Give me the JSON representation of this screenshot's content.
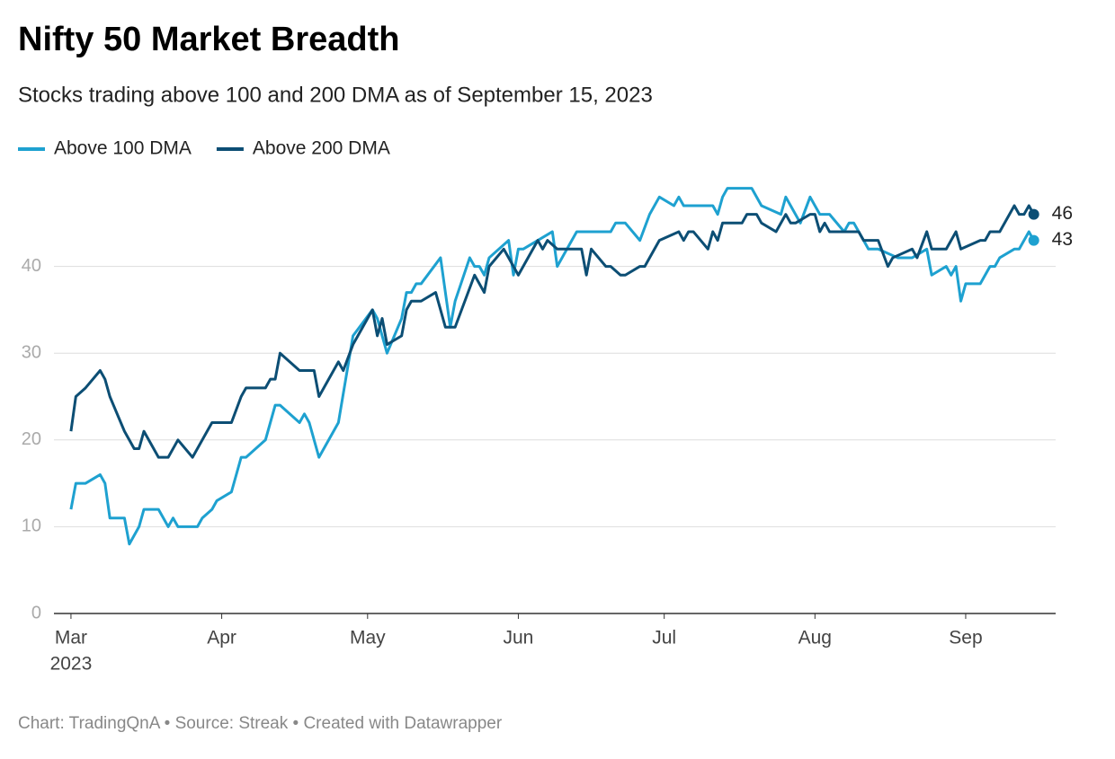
{
  "chart_data": {
    "type": "line",
    "title": "Nifty 50 Market Breadth",
    "subtitle": "Stocks trading above 100 and 200 DMA as of September 15, 2023",
    "footer": "Chart: TradingQnA • Source: Streak • Created with Datawrapper",
    "x_year": "2023",
    "series": [
      {
        "name": "Above 100 DMA",
        "color": "#1ea1d0",
        "x": [
          0,
          1,
          3,
          6,
          7,
          8,
          11,
          12,
          14,
          15,
          18,
          20,
          21,
          22,
          26,
          27,
          29,
          30,
          33,
          35,
          36,
          40,
          42,
          43,
          47,
          48,
          49,
          51,
          55,
          58,
          62,
          63,
          65,
          68,
          69,
          70,
          71,
          72,
          76,
          78,
          79,
          82,
          83,
          84,
          85,
          86,
          90,
          91,
          92,
          93,
          99,
          100,
          104,
          111,
          112,
          114,
          117,
          119,
          121,
          124,
          125,
          126,
          132,
          133,
          134,
          135,
          140,
          142,
          146,
          147,
          148,
          150,
          152,
          154,
          156,
          159,
          160,
          161,
          164,
          166,
          170,
          173,
          176,
          177,
          180,
          181,
          182,
          183,
          184,
          187,
          189,
          190,
          191,
          194,
          195,
          197,
          198
        ],
        "values": [
          12,
          15,
          15,
          16,
          15,
          11,
          11,
          8,
          10,
          12,
          12,
          10,
          11,
          10,
          10,
          11,
          12,
          13,
          14,
          18,
          18,
          20,
          24,
          24,
          22,
          23,
          22,
          18,
          22,
          32,
          35,
          34,
          30,
          34,
          37,
          37,
          38,
          38,
          41,
          33,
          36,
          41,
          40,
          40,
          39,
          41,
          43,
          39,
          42,
          42,
          44,
          40,
          44,
          44,
          45,
          45,
          43,
          46,
          48,
          47,
          48,
          47,
          47,
          46,
          48,
          49,
          49,
          47,
          46,
          48,
          47,
          45,
          48,
          46,
          46,
          44,
          45,
          45,
          42,
          42,
          41,
          41,
          42,
          39,
          40,
          39,
          40,
          36,
          38,
          38,
          40,
          40,
          41,
          42,
          42,
          44,
          43
        ]
      },
      {
        "name": "Above 200 DMA",
        "color": "#0c4e74",
        "x": [
          0,
          1,
          3,
          6,
          7,
          8,
          11,
          13,
          14,
          15,
          18,
          20,
          22,
          25,
          29,
          33,
          35,
          36,
          40,
          41,
          42,
          43,
          47,
          50,
          51,
          55,
          56,
          58,
          62,
          63,
          64,
          65,
          68,
          69,
          70,
          72,
          75,
          77,
          79,
          83,
          85,
          86,
          89,
          92,
          96,
          97,
          98,
          100,
          105,
          106,
          107,
          110,
          111,
          113,
          114,
          117,
          118,
          121,
          125,
          126,
          127,
          128,
          131,
          132,
          133,
          134,
          138,
          139,
          141,
          142,
          145,
          147,
          148,
          149,
          152,
          153,
          154,
          155,
          156,
          162,
          163,
          166,
          168,
          169,
          173,
          174,
          176,
          177,
          180,
          182,
          183,
          187,
          188,
          189,
          191,
          194,
          195,
          196,
          197,
          198
        ],
        "values": [
          21,
          25,
          26,
          28,
          27,
          25,
          21,
          19,
          19,
          21,
          18,
          18,
          20,
          18,
          22,
          22,
          25,
          26,
          26,
          27,
          27,
          30,
          28,
          28,
          25,
          29,
          28,
          31,
          35,
          32,
          34,
          31,
          32,
          35,
          36,
          36,
          37,
          33,
          33,
          39,
          37,
          40,
          42,
          39,
          43,
          42,
          43,
          42,
          42,
          39,
          42,
          40,
          40,
          39,
          39,
          40,
          40,
          43,
          44,
          43,
          44,
          44,
          42,
          44,
          43,
          45,
          45,
          46,
          46,
          45,
          44,
          46,
          45,
          45,
          46,
          46,
          44,
          45,
          44,
          44,
          43,
          43,
          40,
          41,
          42,
          41,
          44,
          42,
          42,
          44,
          42,
          43,
          43,
          44,
          44,
          47,
          46,
          46,
          47,
          46
        ]
      }
    ],
    "xlim": [
      -3.5,
      202.5
    ],
    "xticks": [
      {
        "value": 0,
        "label": "Mar"
      },
      {
        "value": 31,
        "label": "Apr"
      },
      {
        "value": 61,
        "label": "May"
      },
      {
        "value": 92,
        "label": "Jun"
      },
      {
        "value": 122,
        "label": "Jul"
      },
      {
        "value": 153,
        "label": "Aug"
      },
      {
        "value": 184,
        "label": "Sep"
      }
    ],
    "ylim": [
      0,
      50
    ],
    "yticks": [
      0,
      10,
      20,
      30,
      40
    ],
    "grid": true,
    "legend": "top"
  }
}
